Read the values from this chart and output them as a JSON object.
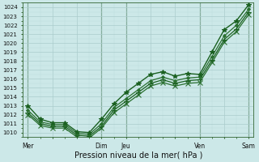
{
  "xlabel": "Pression niveau de la mer( hPa )",
  "bg_color": "#cce8e8",
  "grid_major_color": "#aacccc",
  "grid_minor_color": "#bbdddd",
  "vline_color": "#336633",
  "ylim": [
    1009.5,
    1024.5
  ],
  "yticks": [
    1010,
    1011,
    1012,
    1013,
    1014,
    1015,
    1016,
    1017,
    1018,
    1019,
    1020,
    1021,
    1022,
    1023,
    1024
  ],
  "xtick_labels": [
    "Mer",
    "",
    "",
    "Dim",
    "Jeu",
    "",
    "",
    "Ven",
    "",
    "Sam"
  ],
  "xtick_positions": [
    0,
    1,
    2,
    3,
    4,
    5,
    6,
    7,
    8,
    9
  ],
  "xlim": [
    -0.2,
    9.2
  ],
  "vlines": [
    0,
    3,
    4,
    7,
    9
  ],
  "series": [
    {
      "x": [
        0,
        0.5,
        1.0,
        1.5,
        2.0,
        2.5,
        3.0,
        3.5,
        4.0,
        4.5,
        5.0,
        5.5,
        6.0,
        6.5,
        7.0,
        7.5,
        8.0,
        8.5,
        9.0
      ],
      "y": [
        1013.0,
        1011.5,
        1011.1,
        1011.1,
        1010.1,
        1010.0,
        1011.5,
        1013.2,
        1014.5,
        1015.5,
        1016.5,
        1016.8,
        1016.3,
        1016.6,
        1016.5,
        1019.0,
        1021.5,
        1022.5,
        1024.3
      ],
      "marker": "*",
      "color": "#1a6020",
      "lw": 1.0,
      "ms": 4,
      "zorder": 5
    },
    {
      "x": [
        0,
        0.5,
        1.0,
        1.5,
        2.0,
        2.5,
        3.0,
        3.5,
        4.0,
        4.5,
        5.0,
        5.5,
        6.0,
        6.5,
        7.0,
        7.5,
        8.0,
        8.5,
        9.0
      ],
      "y": [
        1012.5,
        1011.2,
        1010.9,
        1010.9,
        1009.9,
        1009.8,
        1011.0,
        1012.8,
        1013.8,
        1014.8,
        1015.8,
        1016.2,
        1015.8,
        1016.1,
        1016.2,
        1018.5,
        1020.8,
        1022.0,
        1023.8
      ],
      "marker": "D",
      "color": "#2a7030",
      "lw": 0.9,
      "ms": 2,
      "zorder": 4
    },
    {
      "x": [
        0,
        0.5,
        1.0,
        1.5,
        2.0,
        2.5,
        3.0,
        3.5,
        4.0,
        4.5,
        5.0,
        5.5,
        6.0,
        6.5,
        7.0,
        7.5,
        8.0,
        8.5,
        9.0
      ],
      "y": [
        1012.2,
        1011.0,
        1010.7,
        1010.7,
        1009.7,
        1009.6,
        1010.7,
        1012.5,
        1013.5,
        1014.5,
        1015.5,
        1015.9,
        1015.5,
        1015.8,
        1015.9,
        1018.1,
        1020.4,
        1021.6,
        1023.5
      ],
      "marker": "+",
      "color": "#1a6020",
      "lw": 0.9,
      "ms": 4,
      "zorder": 3
    },
    {
      "x": [
        0,
        0.5,
        1.0,
        1.5,
        2.0,
        2.5,
        3.0,
        3.5,
        4.0,
        4.5,
        5.0,
        5.5,
        6.0,
        6.5,
        7.0,
        7.5,
        8.0,
        8.5,
        9.0
      ],
      "y": [
        1012.0,
        1010.8,
        1010.5,
        1010.5,
        1009.5,
        1009.4,
        1010.5,
        1012.2,
        1013.2,
        1014.2,
        1015.2,
        1015.6,
        1015.2,
        1015.5,
        1015.6,
        1017.8,
        1020.1,
        1021.3,
        1023.2
      ],
      "marker": "x",
      "color": "#2a7030",
      "lw": 0.9,
      "ms": 4,
      "zorder": 2
    }
  ]
}
